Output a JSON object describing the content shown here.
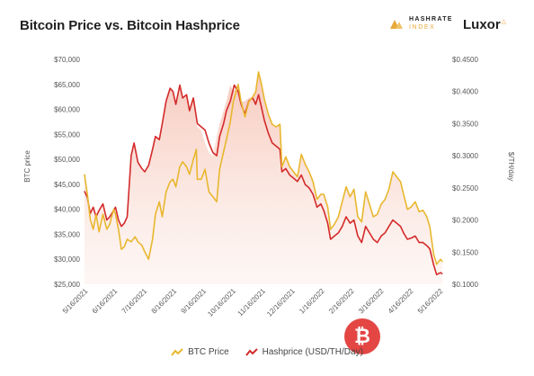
{
  "chart_data": {
    "type": "line",
    "title": "Bitcoin Price vs. Bitcoin Hashprice",
    "ylabel": "BTC price",
    "y2label": "$/TH/day",
    "ylim": [
      25000,
      70000
    ],
    "y2lim": [
      0.1,
      0.45
    ],
    "y_ticks": [
      "$70,000",
      "$65,000",
      "$60,000",
      "$55,000",
      "$50,000",
      "$45,000",
      "$40,000",
      "$35,000",
      "$30,000",
      "$25,000"
    ],
    "y2_ticks": [
      "$0.4500",
      "$0.4000",
      "$0.3500",
      "$0.3000",
      "$0.2500",
      "$0.2000",
      "$0.1500",
      "$0.1000"
    ],
    "x_ticks": [
      "5/16/2021",
      "6/16/2021",
      "7/16/2021",
      "8/16/2021",
      "9/16/2021",
      "10/16/2021",
      "11/16/2021",
      "12/16/2021",
      "1/16/2022",
      "2/16/2022",
      "3/16/2022",
      "4/16/2022",
      "5/16/2022"
    ],
    "series": [
      {
        "name": "BTC Price",
        "axis": "left",
        "color": "#e8b72e",
        "values": [
          [
            "2021-05-15",
            47000
          ],
          [
            "2021-05-18",
            43000
          ],
          [
            "2021-05-21",
            38000
          ],
          [
            "2021-05-24",
            36000
          ],
          [
            "2021-05-27",
            39000
          ],
          [
            "2021-05-30",
            35500
          ],
          [
            "2021-06-03",
            39000
          ],
          [
            "2021-06-07",
            36000
          ],
          [
            "2021-06-10",
            37000
          ],
          [
            "2021-06-14",
            40000
          ],
          [
            "2021-06-16",
            39000
          ],
          [
            "2021-06-19",
            36000
          ],
          [
            "2021-06-22",
            32000
          ],
          [
            "2021-06-25",
            32500
          ],
          [
            "2021-06-28",
            34000
          ],
          [
            "2021-07-02",
            33500
          ],
          [
            "2021-07-06",
            34500
          ],
          [
            "2021-07-09",
            33500
          ],
          [
            "2021-07-13",
            32800
          ],
          [
            "2021-07-16",
            31500
          ],
          [
            "2021-07-20",
            30000
          ],
          [
            "2021-07-24",
            34000
          ],
          [
            "2021-07-27",
            39000
          ],
          [
            "2021-07-31",
            41500
          ],
          [
            "2021-08-03",
            38500
          ],
          [
            "2021-08-07",
            43500
          ],
          [
            "2021-08-11",
            45500
          ],
          [
            "2021-08-14",
            46000
          ],
          [
            "2021-08-17",
            44500
          ],
          [
            "2021-08-21",
            48500
          ],
          [
            "2021-08-24",
            49500
          ],
          [
            "2021-08-28",
            48500
          ],
          [
            "2021-08-31",
            47000
          ],
          [
            "2021-09-04",
            50000
          ],
          [
            "2021-09-07",
            52000
          ],
          [
            "2021-09-08",
            46000
          ],
          [
            "2021-09-12",
            46000
          ],
          [
            "2021-09-16",
            48000
          ],
          [
            "2021-09-20",
            43500
          ],
          [
            "2021-09-24",
            42500
          ],
          [
            "2021-09-28",
            41500
          ],
          [
            "2021-10-01",
            48000
          ],
          [
            "2021-10-05",
            51500
          ],
          [
            "2021-10-08",
            54000
          ],
          [
            "2021-10-12",
            57500
          ],
          [
            "2021-10-15",
            61500
          ],
          [
            "2021-10-20",
            65000
          ],
          [
            "2021-10-23",
            61500
          ],
          [
            "2021-10-27",
            58500
          ],
          [
            "2021-10-31",
            61500
          ],
          [
            "2021-11-04",
            62500
          ],
          [
            "2021-11-07",
            63500
          ],
          [
            "2021-11-10",
            67500
          ],
          [
            "2021-11-13",
            65000
          ],
          [
            "2021-11-16",
            62000
          ],
          [
            "2021-11-20",
            59000
          ],
          [
            "2021-11-24",
            57000
          ],
          [
            "2021-11-28",
            56500
          ],
          [
            "2021-12-02",
            57000
          ],
          [
            "2021-12-04",
            48500
          ],
          [
            "2021-12-08",
            50500
          ],
          [
            "2021-12-12",
            48500
          ],
          [
            "2021-12-16",
            47500
          ],
          [
            "2021-12-20",
            46500
          ],
          [
            "2021-12-24",
            51000
          ],
          [
            "2021-12-28",
            49000
          ],
          [
            "2022-01-01",
            47500
          ],
          [
            "2022-01-05",
            45500
          ],
          [
            "2022-01-09",
            42000
          ],
          [
            "2022-01-13",
            43000
          ],
          [
            "2022-01-16",
            43000
          ],
          [
            "2022-01-20",
            40500
          ],
          [
            "2022-01-23",
            36000
          ],
          [
            "2022-01-27",
            37000
          ],
          [
            "2022-01-31",
            38500
          ],
          [
            "2022-02-04",
            41500
          ],
          [
            "2022-02-08",
            44500
          ],
          [
            "2022-02-12",
            42500
          ],
          [
            "2022-02-16",
            44000
          ],
          [
            "2022-02-20",
            38500
          ],
          [
            "2022-02-24",
            37500
          ],
          [
            "2022-02-28",
            43500
          ],
          [
            "2022-03-04",
            41000
          ],
          [
            "2022-03-08",
            38500
          ],
          [
            "2022-03-12",
            39000
          ],
          [
            "2022-03-16",
            41000
          ],
          [
            "2022-03-20",
            42000
          ],
          [
            "2022-03-24",
            44000
          ],
          [
            "2022-03-28",
            47500
          ],
          [
            "2022-04-01",
            46500
          ],
          [
            "2022-04-05",
            45500
          ],
          [
            "2022-04-08",
            43000
          ],
          [
            "2022-04-12",
            40000
          ],
          [
            "2022-04-16",
            40500
          ],
          [
            "2022-04-20",
            41500
          ],
          [
            "2022-04-24",
            39500
          ],
          [
            "2022-04-28",
            39800
          ],
          [
            "2022-05-02",
            38500
          ],
          [
            "2022-05-05",
            36500
          ],
          [
            "2022-05-09",
            31000
          ],
          [
            "2022-05-12",
            29000
          ],
          [
            "2022-05-16",
            30000
          ],
          [
            "2022-05-18",
            29500
          ]
        ]
      },
      {
        "name": "Hashprice (USD/TH/Day)",
        "axis": "right",
        "color": "#d42a2a",
        "values": [
          [
            "2021-05-15",
            0.245
          ],
          [
            "2021-05-18",
            0.235
          ],
          [
            "2021-05-21",
            0.21
          ],
          [
            "2021-05-24",
            0.22
          ],
          [
            "2021-05-27",
            0.205
          ],
          [
            "2021-05-30",
            0.215
          ],
          [
            "2021-06-03",
            0.225
          ],
          [
            "2021-06-07",
            0.2
          ],
          [
            "2021-06-10",
            0.205
          ],
          [
            "2021-06-14",
            0.215
          ],
          [
            "2021-06-16",
            0.22
          ],
          [
            "2021-06-19",
            0.2
          ],
          [
            "2021-06-22",
            0.19
          ],
          [
            "2021-06-25",
            0.195
          ],
          [
            "2021-06-28",
            0.205
          ],
          [
            "2021-07-02",
            0.3
          ],
          [
            "2021-07-05",
            0.32
          ],
          [
            "2021-07-09",
            0.29
          ],
          [
            "2021-07-13",
            0.28
          ],
          [
            "2021-07-16",
            0.275
          ],
          [
            "2021-07-20",
            0.285
          ],
          [
            "2021-07-24",
            0.31
          ],
          [
            "2021-07-27",
            0.33
          ],
          [
            "2021-07-31",
            0.325
          ],
          [
            "2021-08-03",
            0.35
          ],
          [
            "2021-08-07",
            0.385
          ],
          [
            "2021-08-11",
            0.405
          ],
          [
            "2021-08-14",
            0.4
          ],
          [
            "2021-08-17",
            0.38
          ],
          [
            "2021-08-21",
            0.41
          ],
          [
            "2021-08-24",
            0.39
          ],
          [
            "2021-08-28",
            0.395
          ],
          [
            "2021-08-31",
            0.37
          ],
          [
            "2021-09-04",
            0.39
          ],
          [
            "2021-09-08",
            0.35
          ],
          [
            "2021-09-12",
            0.345
          ],
          [
            "2021-09-16",
            0.34
          ],
          [
            "2021-09-20",
            0.32
          ],
          [
            "2021-09-24",
            0.305
          ],
          [
            "2021-09-28",
            0.3
          ],
          [
            "2021-10-01",
            0.33
          ],
          [
            "2021-10-05",
            0.35
          ],
          [
            "2021-10-08",
            0.37
          ],
          [
            "2021-10-12",
            0.385
          ],
          [
            "2021-10-16",
            0.41
          ],
          [
            "2021-10-20",
            0.4
          ],
          [
            "2021-10-23",
            0.38
          ],
          [
            "2021-10-27",
            0.365
          ],
          [
            "2021-10-31",
            0.385
          ],
          [
            "2021-11-04",
            0.39
          ],
          [
            "2021-11-07",
            0.38
          ],
          [
            "2021-11-10",
            0.395
          ],
          [
            "2021-11-13",
            0.375
          ],
          [
            "2021-11-16",
            0.355
          ],
          [
            "2021-11-20",
            0.335
          ],
          [
            "2021-11-24",
            0.32
          ],
          [
            "2021-11-28",
            0.315
          ],
          [
            "2021-12-02",
            0.31
          ],
          [
            "2021-12-04",
            0.275
          ],
          [
            "2021-12-08",
            0.28
          ],
          [
            "2021-12-12",
            0.27
          ],
          [
            "2021-12-16",
            0.265
          ],
          [
            "2021-12-20",
            0.26
          ],
          [
            "2021-12-24",
            0.27
          ],
          [
            "2021-12-28",
            0.255
          ],
          [
            "2022-01-01",
            0.25
          ],
          [
            "2022-01-05",
            0.24
          ],
          [
            "2022-01-09",
            0.22
          ],
          [
            "2022-01-13",
            0.225
          ],
          [
            "2022-01-16",
            0.215
          ],
          [
            "2022-01-20",
            0.195
          ],
          [
            "2022-01-23",
            0.17
          ],
          [
            "2022-01-27",
            0.175
          ],
          [
            "2022-01-31",
            0.18
          ],
          [
            "2022-02-04",
            0.19
          ],
          [
            "2022-02-08",
            0.205
          ],
          [
            "2022-02-12",
            0.195
          ],
          [
            "2022-02-16",
            0.2
          ],
          [
            "2022-02-20",
            0.175
          ],
          [
            "2022-02-24",
            0.165
          ],
          [
            "2022-02-28",
            0.19
          ],
          [
            "2022-03-04",
            0.18
          ],
          [
            "2022-03-08",
            0.17
          ],
          [
            "2022-03-12",
            0.165
          ],
          [
            "2022-03-16",
            0.175
          ],
          [
            "2022-03-20",
            0.18
          ],
          [
            "2022-03-24",
            0.19
          ],
          [
            "2022-03-28",
            0.2
          ],
          [
            "2022-04-01",
            0.195
          ],
          [
            "2022-04-05",
            0.19
          ],
          [
            "2022-04-08",
            0.18
          ],
          [
            "2022-04-12",
            0.17
          ],
          [
            "2022-04-16",
            0.172
          ],
          [
            "2022-04-20",
            0.175
          ],
          [
            "2022-04-24",
            0.165
          ],
          [
            "2022-04-28",
            0.165
          ],
          [
            "2022-05-02",
            0.16
          ],
          [
            "2022-05-05",
            0.155
          ],
          [
            "2022-05-09",
            0.13
          ],
          [
            "2022-05-12",
            0.115
          ],
          [
            "2022-05-16",
            0.118
          ],
          [
            "2022-05-18",
            0.116
          ]
        ]
      }
    ],
    "legend_position": "bottom-center",
    "grid": false
  },
  "brands": {
    "hashrate_index_top": "HASHRATE",
    "hashrate_index_bottom": "INDEX",
    "luxor": "Luxor"
  },
  "watermark_symbol": "₿",
  "colors": {
    "btc": "#e8b72e",
    "hashprice": "#d42a2a",
    "fill": "#f9d9d2"
  }
}
